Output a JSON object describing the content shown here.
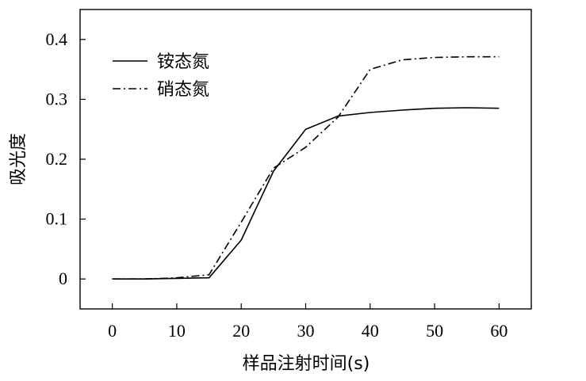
{
  "chart_data": {
    "type": "line",
    "xlabel": "样品注射时间(s)",
    "ylabel": "吸光度",
    "xlim": [
      -5,
      65
    ],
    "ylim": [
      -0.05,
      0.45
    ],
    "xticks": [
      0,
      10,
      20,
      30,
      40,
      50,
      60
    ],
    "yticks": [
      0,
      0.1,
      0.2,
      0.3,
      0.4
    ],
    "xtick_labels": [
      "0",
      "10",
      "20",
      "30",
      "40",
      "50",
      "60"
    ],
    "ytick_labels": [
      "0",
      "0.1",
      "0.2",
      "0.3",
      "0.4"
    ],
    "grid": false,
    "legend_position": "top-left",
    "series": [
      {
        "name": "铵态氮",
        "line_style": "solid",
        "color": "#000000",
        "x": [
          0,
          5,
          10,
          15,
          20,
          25,
          30,
          35,
          40,
          45,
          50,
          55,
          60
        ],
        "y": [
          0.0,
          0.0,
          0.001,
          0.002,
          0.065,
          0.18,
          0.25,
          0.272,
          0.278,
          0.282,
          0.285,
          0.286,
          0.285
        ]
      },
      {
        "name": "硝态氮",
        "line_style": "dash-dot",
        "color": "#000000",
        "x": [
          0,
          5,
          10,
          15,
          20,
          25,
          30,
          35,
          40,
          45,
          50,
          55,
          60
        ],
        "y": [
          0.0,
          0.0,
          0.002,
          0.007,
          0.095,
          0.185,
          0.22,
          0.27,
          0.35,
          0.366,
          0.37,
          0.371,
          0.371
        ]
      }
    ]
  }
}
